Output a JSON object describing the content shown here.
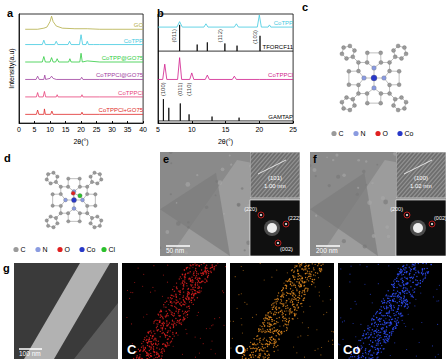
{
  "chart_data": [
    {
      "type": "line",
      "title": "a",
      "xlabel": "2θ(°)",
      "ylabel": "Intensity(a.u)",
      "xlim": [
        0,
        40
      ],
      "xticks": [
        0,
        5,
        10,
        15,
        20,
        25,
        30,
        35,
        40
      ],
      "ylim": [
        0,
        100
      ],
      "tick_labels": "x",
      "grid": false,
      "series": [
        {
          "name": "GO",
          "color": "#b3ad45",
          "x": [
            2,
            6,
            8,
            9,
            10,
            10.5,
            11,
            12,
            14,
            18,
            22,
            26,
            30,
            40
          ],
          "values": [
            86,
            86,
            87,
            88,
            93,
            98,
            93,
            89,
            87,
            86.5,
            86.5,
            86,
            86,
            86
          ]
        },
        {
          "name": "CoTPP",
          "color": "#3fc9e0",
          "x": [
            2,
            7.5,
            8,
            8.5,
            11.5,
            12,
            12.5,
            15.8,
            16.3,
            16.8,
            19.5,
            20,
            20.5,
            21.6,
            22,
            22.4,
            24,
            26,
            40
          ],
          "values": [
            72,
            72,
            76,
            72,
            72,
            75,
            72,
            72,
            75,
            72,
            72,
            81,
            72,
            72,
            75,
            72,
            72,
            72,
            72
          ]
        },
        {
          "name": "CoTPP@GO75",
          "color": "#2ecc40",
          "x": [
            2,
            7.5,
            8,
            8.5,
            10,
            10.5,
            11,
            11.8,
            12.3,
            12.8,
            16,
            16.4,
            16.8,
            19.6,
            20,
            20.4,
            22,
            26,
            40
          ],
          "values": [
            56,
            56,
            61,
            56,
            56,
            60,
            56,
            56,
            59,
            56,
            56,
            59,
            56,
            56,
            64,
            56,
            57,
            56,
            56
          ]
        },
        {
          "name": "CoTPPCl@GO75",
          "color": "#a040a0",
          "x": [
            2,
            5.5,
            6,
            6.5,
            8,
            8.3,
            8.6,
            10,
            10.5,
            11,
            12,
            19.8,
            20.2,
            20.6,
            26,
            40
          ],
          "values": [
            40,
            40,
            43,
            40,
            40,
            44,
            40,
            41,
            43,
            41,
            40,
            40,
            42,
            40,
            40,
            40
          ]
        },
        {
          "name": "CoTPPCl",
          "color": "#e8407a",
          "x": [
            2,
            5.6,
            6,
            6.4,
            7.8,
            8.2,
            8.6,
            12,
            12.3,
            12.6,
            20,
            20.3,
            20.6,
            26,
            40
          ],
          "values": [
            24,
            24,
            28,
            24,
            24,
            29,
            24,
            24,
            26,
            24,
            24,
            26,
            24,
            24,
            24
          ]
        },
        {
          "name": "CoTPPCl+GO75",
          "color": "#e02828",
          "x": [
            2,
            5.6,
            6,
            6.4,
            8,
            8.2,
            8.5,
            10.2,
            10.6,
            11,
            20,
            20.3,
            20.6,
            26,
            40
          ],
          "values": [
            8,
            8,
            12,
            8,
            8,
            13,
            8,
            8,
            11,
            8,
            8,
            10,
            8,
            8,
            8
          ]
        }
      ]
    },
    {
      "type": "line",
      "title": "b",
      "xlabel": "2θ(°)",
      "xlim": [
        5,
        25
      ],
      "xticks": [
        5,
        10,
        15,
        20,
        25
      ],
      "ylim": [
        0,
        100
      ],
      "tick_labels": "x",
      "grid": false,
      "series": [
        {
          "name": "CoTPP",
          "color": "#3fc9e0",
          "x": [
            5,
            7.8,
            8.2,
            8.6,
            11.8,
            12.1,
            12.4,
            16.3,
            16.6,
            16.9,
            19.7,
            20,
            20.3,
            21.3,
            21.5,
            21.7,
            25
          ],
          "values": [
            88,
            88,
            93,
            88,
            88,
            91,
            88,
            88,
            91,
            88,
            88,
            99,
            88,
            88,
            90,
            88,
            88
          ]
        },
        {
          "name": "TFORCF11",
          "color": "#000000",
          "x": [
            5,
            8.2,
            8.2,
            8.2,
            10.8,
            10.8,
            10.8,
            12.3,
            12.3,
            12.3,
            14.9,
            14.9,
            14.9,
            16.7,
            16.7,
            16.7,
            20.1,
            20.1,
            20.1,
            25
          ],
          "values": [
            66,
            66,
            90,
            66,
            66,
            72,
            66,
            66,
            74,
            66,
            66,
            73,
            66,
            66,
            71,
            66,
            66,
            80,
            66,
            66
          ]
        },
        {
          "name": "CoTPPCl",
          "color": "#d01c8b",
          "x": [
            5,
            5.7,
            6,
            6.3,
            7.9,
            8.2,
            8.5,
            9.7,
            10,
            10.3,
            12,
            12.3,
            12.6,
            16,
            16.3,
            16.6,
            20,
            21,
            25
          ],
          "values": [
            40,
            40,
            54,
            40,
            40,
            60,
            40,
            40,
            46,
            40,
            40,
            44,
            40,
            40,
            43,
            40,
            40,
            40,
            40
          ]
        },
        {
          "name": "GAMTAP",
          "color": "#000000",
          "x": [
            5,
            5.8,
            5.8,
            5.8,
            6.6,
            6.6,
            6.6,
            8.3,
            8.3,
            8.3,
            9.6,
            9.6,
            9.6,
            13,
            13,
            13,
            17,
            17,
            17,
            25
          ],
          "values": [
            2,
            2,
            22,
            2,
            2,
            14,
            2,
            2,
            18,
            2,
            2,
            8,
            2,
            2,
            6,
            2,
            2,
            5,
            2,
            2
          ]
        }
      ],
      "annotations": [
        {
          "text": "(011)",
          "x": 7.4,
          "y": 80
        },
        {
          "text": "(112)",
          "x": 14.2,
          "y": 80
        },
        {
          "text": "(103)",
          "x": 19.4,
          "y": 79
        },
        {
          "text": "(100)",
          "x": 5.8,
          "y": 31
        },
        {
          "text": "(011)",
          "x": 8.3,
          "y": 31
        },
        {
          "text": "(110)",
          "x": 9.6,
          "y": 31
        }
      ]
    }
  ],
  "figure": {
    "c": {
      "label": "c",
      "atoms": [
        {
          "symbol": "C",
          "color": "#9a9a9a"
        },
        {
          "symbol": "N",
          "color": "#8a9be0"
        },
        {
          "symbol": "O",
          "color": "#e02020"
        },
        {
          "symbol": "Co",
          "color": "#2838c8"
        }
      ]
    },
    "d": {
      "label": "d",
      "atoms": [
        {
          "symbol": "C",
          "color": "#9a9a9a"
        },
        {
          "symbol": "N",
          "color": "#8a9be0"
        },
        {
          "symbol": "O",
          "color": "#e02020"
        },
        {
          "symbol": "Co",
          "color": "#2838c8"
        },
        {
          "symbol": "Cl",
          "color": "#2cc02c"
        }
      ]
    },
    "e": {
      "label": "e",
      "scale_bar": "50 nm",
      "lattice": {
        "plane": "(101)",
        "spacing": "1.00 nm"
      },
      "spots": [
        "(220)",
        "(222)",
        "(002)"
      ]
    },
    "f": {
      "label": "f",
      "scale_bar": "200 nm",
      "lattice": {
        "plane": "(100)",
        "spacing": "1.02 nm"
      },
      "spots": [
        "(200)",
        "(002)"
      ]
    },
    "g": {
      "label": "g",
      "scale_bar": "100 nm",
      "maps": [
        {
          "element": "C",
          "color": "#e02020"
        },
        {
          "element": "O",
          "color": "#e08a20"
        },
        {
          "element": "Co",
          "color": "#3050ff"
        }
      ]
    }
  }
}
